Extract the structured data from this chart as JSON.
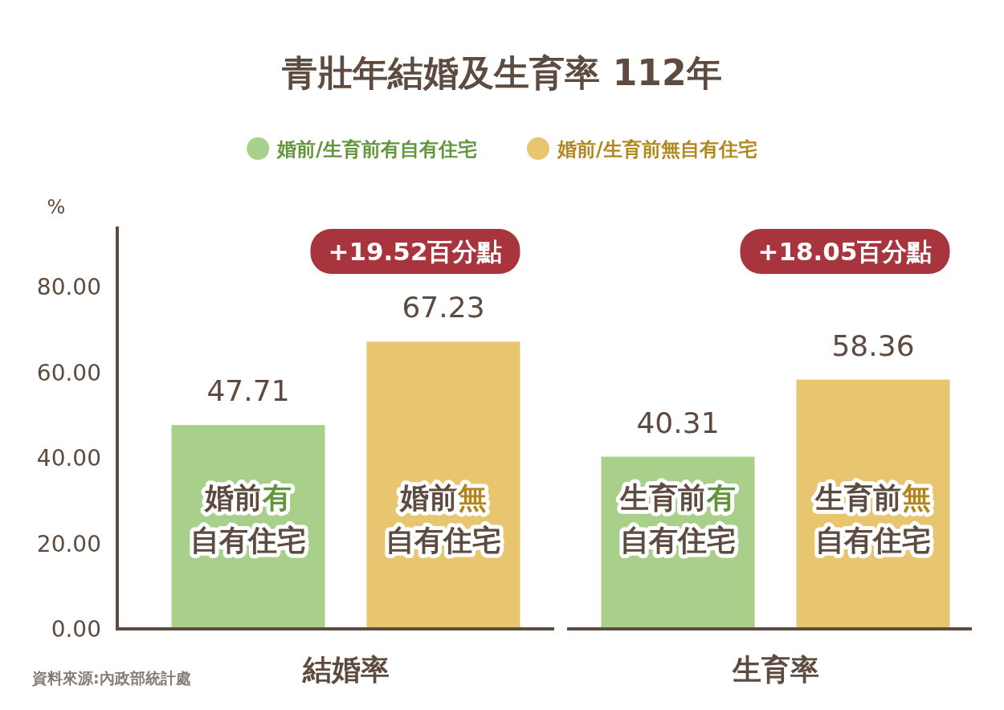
{
  "chart_data": {
    "type": "bar",
    "title": "青壯年結婚及生育率 112年",
    "ylabel": "%",
    "categories": [
      "結婚率",
      "生育率"
    ],
    "series": [
      {
        "name": "婚前/生育前有自有住宅",
        "color": "#a8d08a",
        "values": [
          47.71,
          40.31
        ]
      },
      {
        "name": "婚前/生育前無自有住宅",
        "color": "#e8c56f",
        "values": [
          67.23,
          58.36
        ]
      }
    ],
    "ylim": [
      0,
      94
    ],
    "yticks": [
      {
        "value": 0,
        "label": "0.00"
      },
      {
        "value": 20,
        "label": "20.00"
      },
      {
        "value": 40,
        "label": "40.00"
      },
      {
        "value": 60,
        "label": "60.00"
      },
      {
        "value": 80,
        "label": "80.00"
      }
    ],
    "data_labels": true,
    "legend": "top",
    "annotations": [
      "+19.52百分點",
      "+18.05百分點",
      "婚前有",
      "自有住宅",
      "婚前無",
      "自有住宅",
      "生育前有",
      "自有住宅",
      "生育前無",
      "自有住宅",
      "資料來源:內政部統計處"
    ]
  }
}
